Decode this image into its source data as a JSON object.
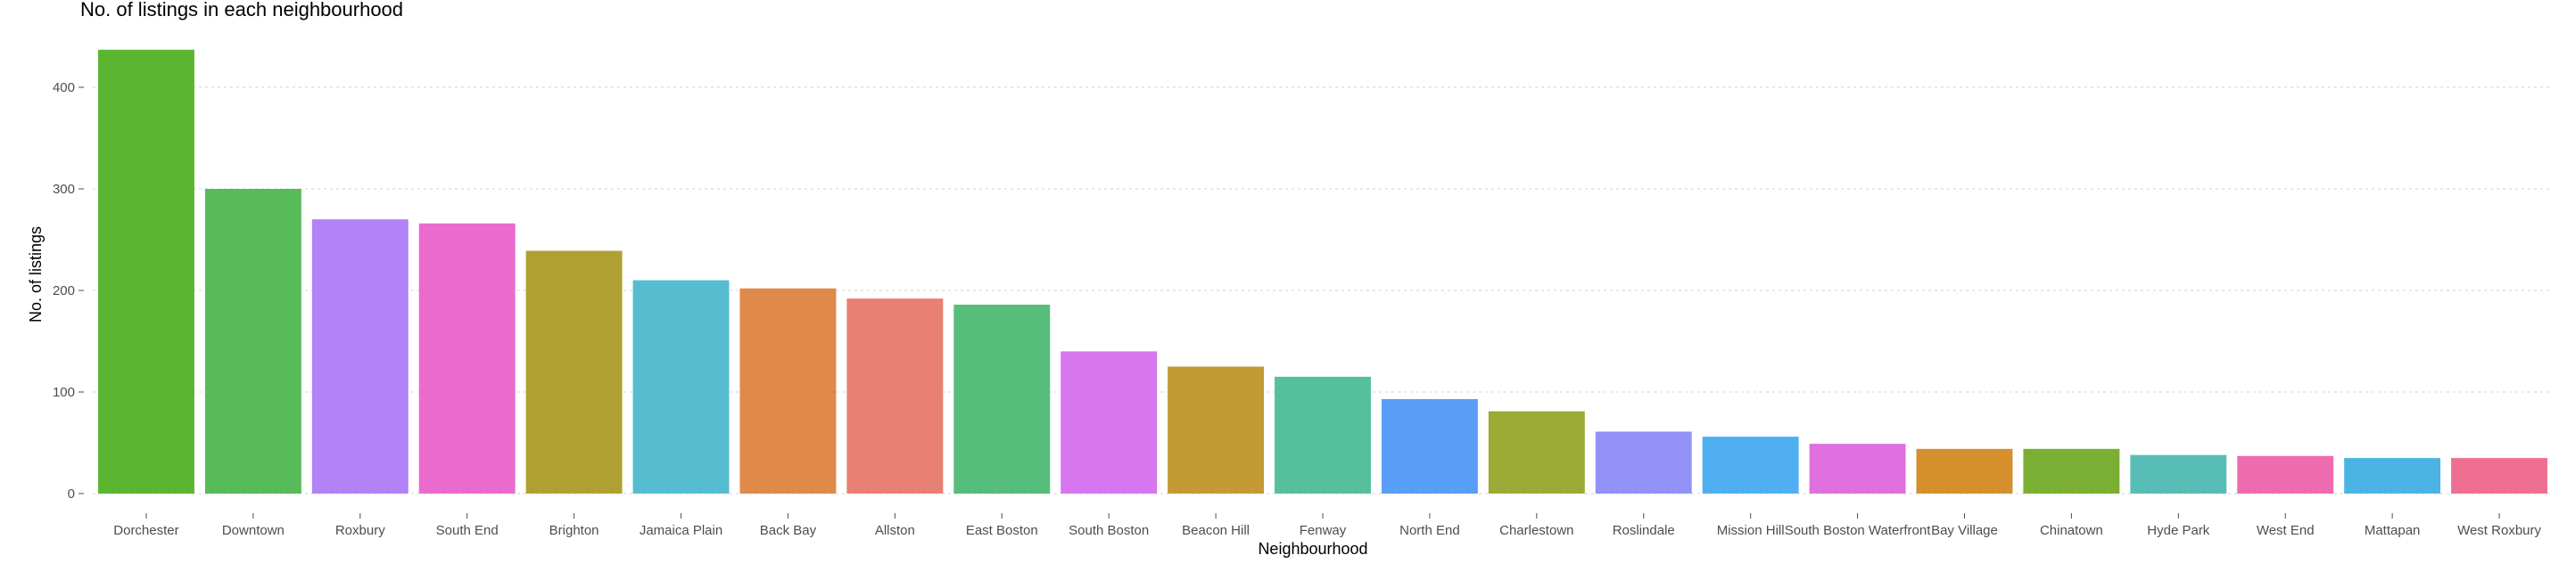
{
  "chart_data": {
    "type": "bar",
    "title": "No. of listings in each neighbourhood",
    "xlabel": "Neighbourhood",
    "ylabel": "No. of listings",
    "ylim": [
      0,
      440
    ],
    "yticks": [
      0,
      100,
      200,
      300,
      400
    ],
    "grid": true,
    "categories": [
      "Dorchester",
      "Downtown",
      "Roxbury",
      "South End",
      "Brighton",
      "Jamaica Plain",
      "Back Bay",
      "Allston",
      "East Boston",
      "South Boston",
      "Beacon Hill",
      "Fenway",
      "North End",
      "Charlestown",
      "Roslindale",
      "Mission Hill",
      "South Boston Waterfront",
      "Bay Village",
      "Chinatown",
      "Hyde Park",
      "West End",
      "Mattapan",
      "West Roxbury"
    ],
    "values": [
      437,
      300,
      270,
      266,
      239,
      210,
      202,
      192,
      186,
      140,
      125,
      115,
      93,
      81,
      61,
      56,
      49,
      44,
      44,
      38,
      37,
      35,
      35
    ],
    "colors": [
      "#5cb531",
      "#57bb59",
      "#b382f6",
      "#ea6bcd",
      "#b0a032",
      "#56bdd0",
      "#df894b",
      "#e88073",
      "#57bd7b",
      "#d776ef",
      "#c39a33",
      "#56bf9b",
      "#599ef7",
      "#9aaa34",
      "#9292f8",
      "#4faff1",
      "#e06fe0",
      "#d58f2d",
      "#7aaf33",
      "#58bdb6",
      "#ef6bb0",
      "#4bb4e4",
      "#ef6f93"
    ]
  }
}
